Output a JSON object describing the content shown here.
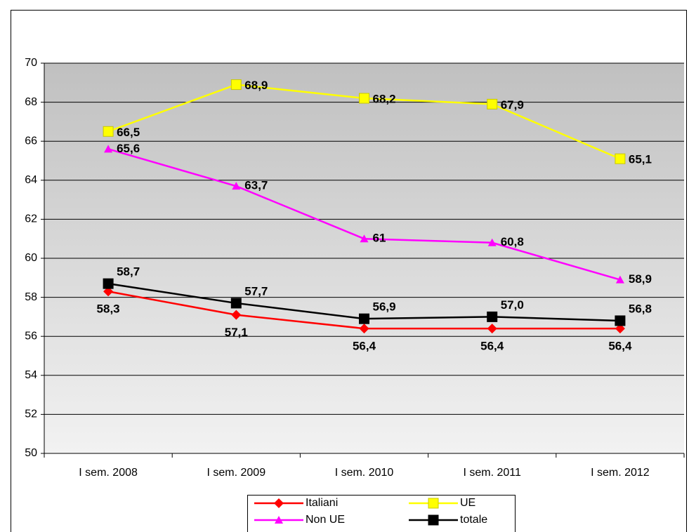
{
  "chart_data": {
    "type": "line",
    "categories": [
      "I sem. 2008",
      "I sem. 2009",
      "I sem. 2010",
      "I sem. 2011",
      "I sem. 2012"
    ],
    "series": [
      {
        "name": "Italiani",
        "color": "#ff0000",
        "marker": "diamond",
        "values": [
          58.3,
          57.1,
          56.4,
          56.4,
          56.4
        ],
        "value_labels": [
          "58,3",
          "57,1",
          "56,4",
          "56,4",
          "56,4"
        ]
      },
      {
        "name": "UE",
        "color": "#ffff00",
        "marker": "square",
        "values": [
          66.5,
          68.9,
          68.2,
          67.9,
          65.1
        ],
        "value_labels": [
          "66,5",
          "68,9",
          "68,2",
          "67,9",
          "65,1"
        ]
      },
      {
        "name": "Non UE",
        "color": "#ff00ff",
        "marker": "triangle",
        "values": [
          65.6,
          63.7,
          61,
          60.8,
          58.9
        ],
        "value_labels": [
          "65,6",
          "63,7",
          "61",
          "60,8",
          "58,9"
        ]
      },
      {
        "name": "totale",
        "color": "#000000",
        "marker": "square",
        "values": [
          58.7,
          57.7,
          56.9,
          57.0,
          56.8
        ],
        "value_labels": [
          "58,7",
          "57,7",
          "56,9",
          "57,0",
          "56,8"
        ]
      }
    ],
    "ylim": [
      50,
      70
    ],
    "yticks": [
      50,
      52,
      54,
      56,
      58,
      60,
      62,
      64,
      66,
      68,
      70
    ],
    "grid": true
  }
}
